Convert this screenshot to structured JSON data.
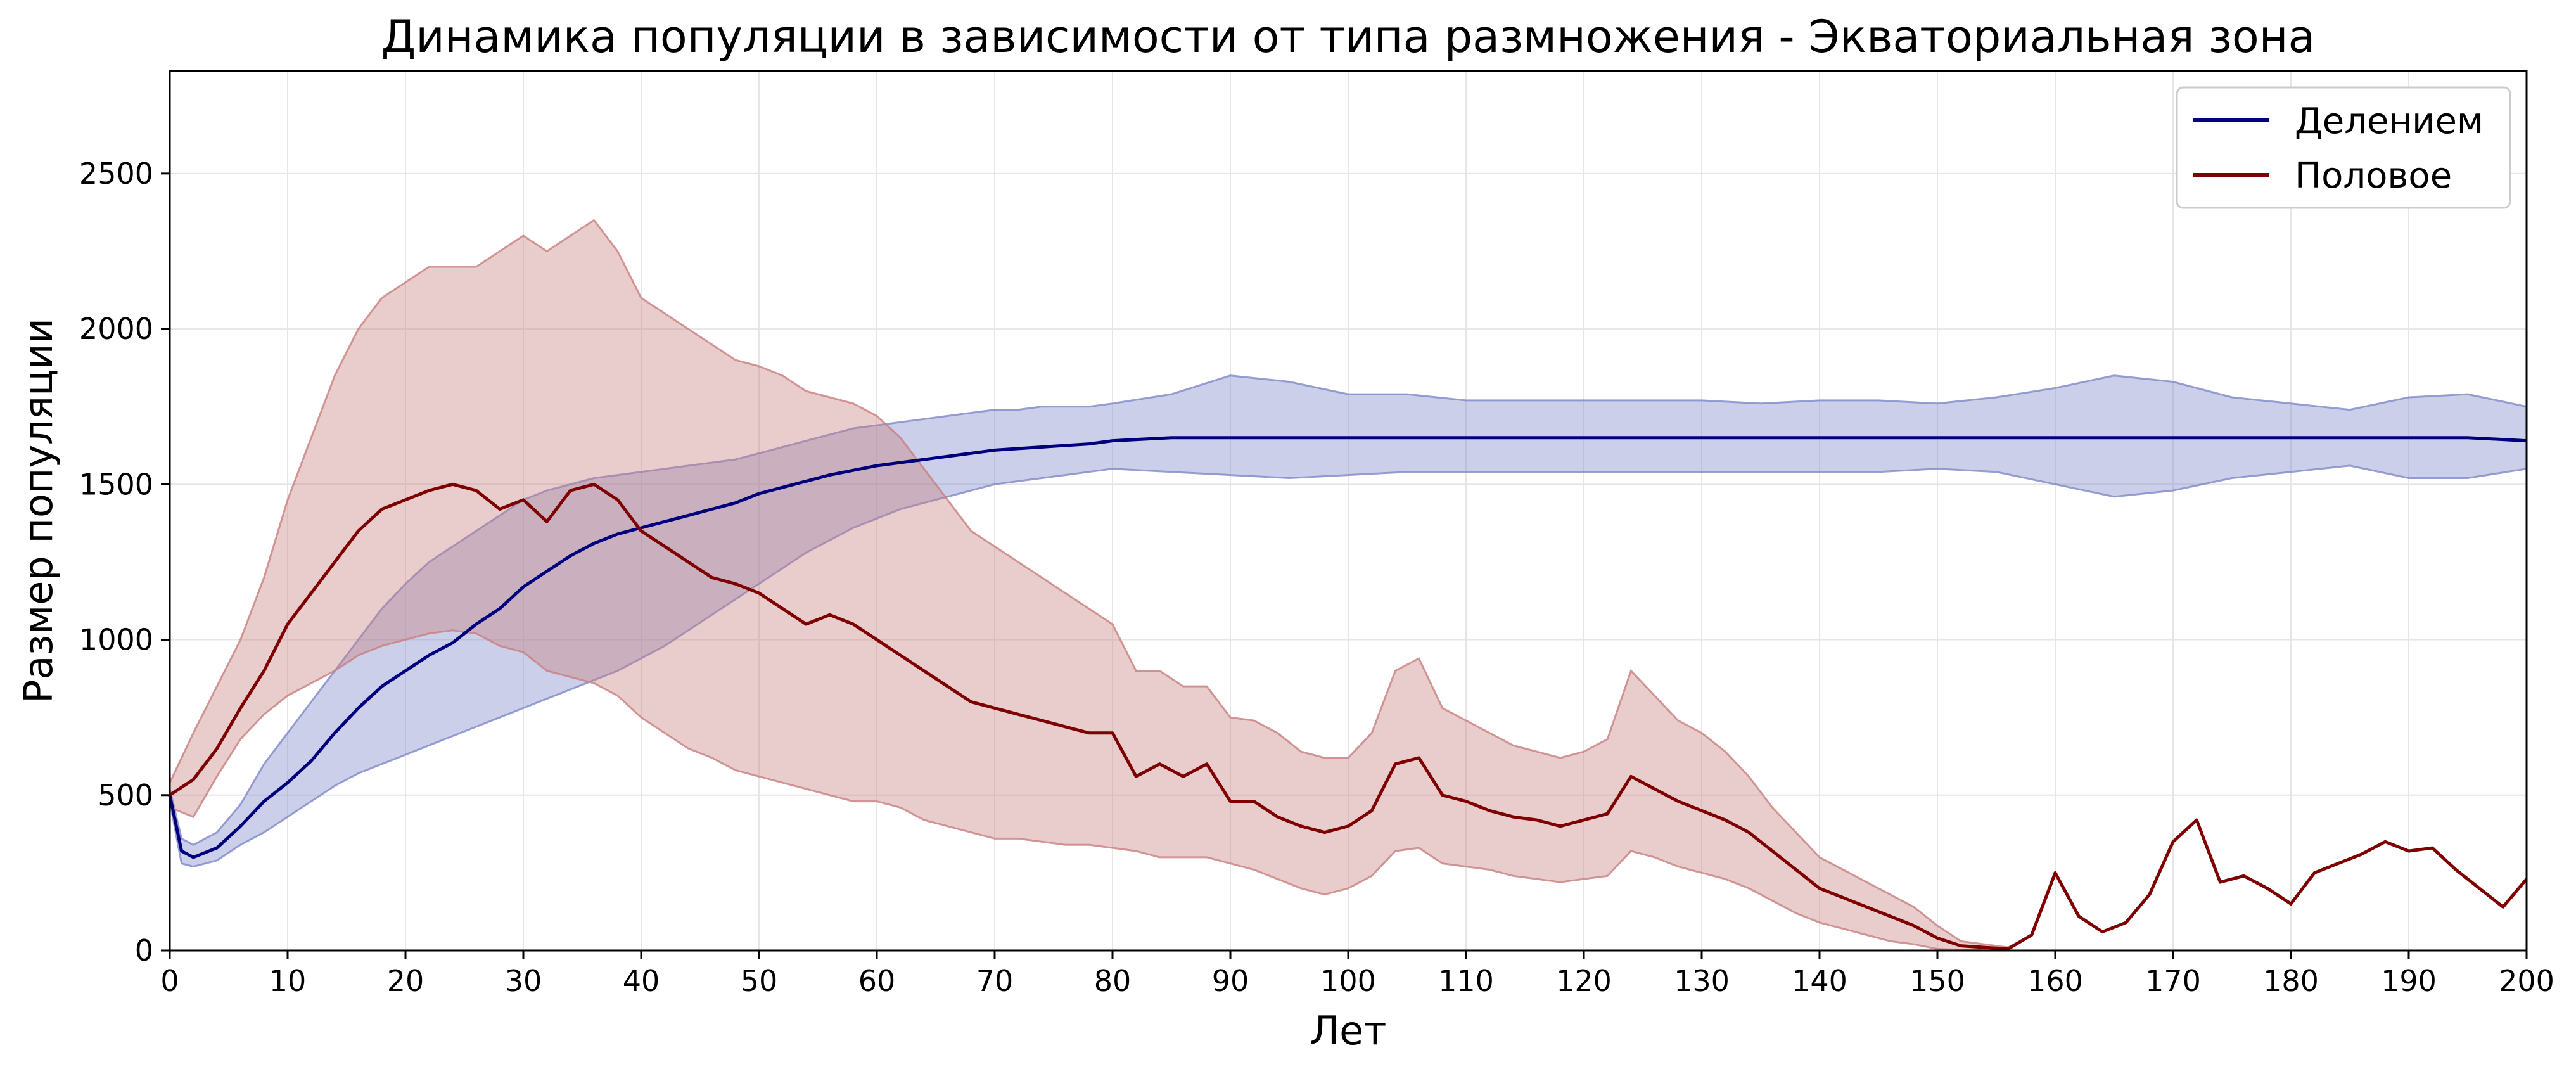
{
  "chart_data": {
    "type": "line",
    "title": "Динамика популяции в зависимости от типа размножения - Экваториальная зона",
    "xlabel": "Лет",
    "ylabel": "Размер популяции",
    "xlim": [
      0,
      200
    ],
    "ylim": [
      0,
      2830
    ],
    "x_ticks": [
      "0",
      "10",
      "20",
      "30",
      "40",
      "50",
      "60",
      "70",
      "80",
      "90",
      "100",
      "110",
      "120",
      "130",
      "140",
      "150",
      "160",
      "170",
      "180",
      "190",
      "200"
    ],
    "y_ticks": [
      "0",
      "500",
      "1000",
      "1500",
      "2000",
      "2500"
    ],
    "grid": true,
    "legend_position": "top-right",
    "bands": "shaded ranges around each series",
    "series": [
      {
        "name": "Делением",
        "color": "#00007f",
        "band_color": "#8088c8",
        "x": [
          0,
          1,
          2,
          4,
          6,
          8,
          10,
          12,
          14,
          16,
          18,
          20,
          22,
          24,
          26,
          28,
          30,
          32,
          34,
          36,
          38,
          40,
          42,
          44,
          46,
          48,
          50,
          52,
          54,
          56,
          58,
          60,
          62,
          64,
          66,
          68,
          70,
          72,
          74,
          76,
          78,
          80,
          85,
          90,
          95,
          100,
          105,
          110,
          115,
          120,
          125,
          130,
          135,
          140,
          145,
          150,
          155,
          160,
          165,
          170,
          175,
          180,
          185,
          190,
          195,
          200
        ],
        "values": [
          500,
          320,
          300,
          330,
          400,
          480,
          540,
          610,
          700,
          780,
          850,
          900,
          950,
          990,
          1050,
          1100,
          1170,
          1220,
          1270,
          1310,
          1340,
          1360,
          1380,
          1400,
          1420,
          1440,
          1470,
          1490,
          1510,
          1530,
          1545,
          1560,
          1570,
          1580,
          1590,
          1600,
          1610,
          1615,
          1620,
          1625,
          1630,
          1640,
          1650,
          1650,
          1650,
          1650,
          1650,
          1650,
          1650,
          1650,
          1650,
          1650,
          1650,
          1650,
          1650,
          1650,
          1650,
          1650,
          1650,
          1650,
          1650,
          1650,
          1650,
          1650,
          1650,
          1640
        ],
        "band_low": [
          480,
          280,
          270,
          290,
          340,
          380,
          430,
          480,
          530,
          570,
          600,
          630,
          660,
          690,
          720,
          750,
          780,
          810,
          840,
          870,
          900,
          940,
          980,
          1030,
          1080,
          1130,
          1180,
          1230,
          1280,
          1320,
          1360,
          1390,
          1420,
          1440,
          1460,
          1480,
          1500,
          1510,
          1520,
          1530,
          1540,
          1550,
          1540,
          1530,
          1520,
          1530,
          1540,
          1540,
          1540,
          1540,
          1540,
          1540,
          1540,
          1540,
          1540,
          1550,
          1540,
          1500,
          1460,
          1480,
          1520,
          1540,
          1560,
          1520,
          1520,
          1550
        ],
        "band_high": [
          520,
          360,
          340,
          380,
          470,
          600,
          700,
          800,
          900,
          1000,
          1100,
          1180,
          1250,
          1300,
          1350,
          1400,
          1450,
          1480,
          1500,
          1520,
          1530,
          1540,
          1550,
          1560,
          1570,
          1580,
          1600,
          1620,
          1640,
          1660,
          1680,
          1690,
          1700,
          1710,
          1720,
          1730,
          1740,
          1740,
          1750,
          1750,
          1750,
          1760,
          1790,
          1850,
          1830,
          1790,
          1790,
          1770,
          1770,
          1770,
          1770,
          1770,
          1760,
          1770,
          1770,
          1760,
          1780,
          1810,
          1850,
          1830,
          1780,
          1760,
          1740,
          1780,
          1790,
          1750
        ]
      },
      {
        "name": "Половое",
        "color": "#7f0000",
        "band_color": "#c88080",
        "x": [
          0,
          2,
          4,
          6,
          8,
          10,
          12,
          14,
          16,
          18,
          20,
          22,
          24,
          26,
          28,
          30,
          32,
          34,
          36,
          38,
          40,
          42,
          44,
          46,
          48,
          50,
          52,
          54,
          56,
          58,
          60,
          62,
          64,
          66,
          68,
          70,
          72,
          74,
          76,
          78,
          80,
          82,
          84,
          86,
          88,
          90,
          92,
          94,
          96,
          98,
          100,
          102,
          104,
          106,
          108,
          110,
          112,
          114,
          116,
          118,
          120,
          122,
          124,
          126,
          128,
          130,
          132,
          134,
          136,
          138,
          140,
          142,
          144,
          146,
          148,
          150,
          152,
          154,
          156,
          158,
          160,
          162,
          164,
          166,
          168,
          170,
          172,
          174,
          176,
          178,
          180,
          182,
          184,
          186,
          188,
          190,
          192,
          194,
          196,
          198,
          200
        ],
        "values": [
          500,
          550,
          650,
          780,
          900,
          1050,
          1150,
          1250,
          1350,
          1420,
          1450,
          1480,
          1500,
          1480,
          1420,
          1450,
          1380,
          1480,
          1500,
          1450,
          1350,
          1300,
          1250,
          1200,
          1180,
          1150,
          1100,
          1050,
          1080,
          1050,
          1000,
          950,
          900,
          850,
          800,
          780,
          760,
          740,
          720,
          700,
          700,
          560,
          600,
          560,
          600,
          480,
          480,
          430,
          400,
          380,
          400,
          450,
          600,
          620,
          500,
          480,
          450,
          430,
          420,
          400,
          420,
          440,
          560,
          520,
          480,
          450,
          420,
          380,
          320,
          260,
          200,
          170,
          140,
          110,
          80,
          40,
          15,
          10,
          5,
          50,
          250,
          110,
          60,
          90,
          180,
          350,
          420,
          220,
          240,
          200,
          150,
          250,
          280,
          310,
          350,
          320,
          330,
          260,
          200,
          140,
          230
        ],
        "band_low": [
          460,
          430,
          560,
          680,
          760,
          820,
          860,
          900,
          950,
          980,
          1000,
          1020,
          1030,
          1020,
          980,
          960,
          900,
          880,
          860,
          820,
          750,
          700,
          650,
          620,
          580,
          560,
          540,
          520,
          500,
          480,
          480,
          460,
          420,
          400,
          380,
          360,
          360,
          350,
          340,
          340,
          330,
          320,
          300,
          300,
          300,
          280,
          260,
          230,
          200,
          180,
          200,
          240,
          320,
          330,
          280,
          270,
          260,
          240,
          230,
          220,
          230,
          240,
          320,
          300,
          270,
          250,
          230,
          200,
          160,
          120,
          90,
          70,
          50,
          30,
          20,
          5,
          2,
          2,
          2,
          50,
          250,
          110,
          60,
          90,
          180,
          350,
          420,
          220,
          240,
          200,
          150,
          250,
          280,
          310,
          350,
          320,
          330,
          260,
          200,
          140,
          230
        ],
        "band_high": [
          540,
          700,
          850,
          1000,
          1200,
          1450,
          1650,
          1850,
          2000,
          2100,
          2150,
          2200,
          2200,
          2200,
          2250,
          2300,
          2250,
          2300,
          2350,
          2250,
          2100,
          2050,
          2000,
          1950,
          1900,
          1880,
          1850,
          1800,
          1780,
          1760,
          1720,
          1650,
          1550,
          1450,
          1350,
          1300,
          1250,
          1200,
          1150,
          1100,
          1050,
          900,
          900,
          850,
          850,
          750,
          740,
          700,
          640,
          620,
          620,
          700,
          900,
          940,
          780,
          740,
          700,
          660,
          640,
          620,
          640,
          680,
          900,
          820,
          740,
          700,
          640,
          560,
          460,
          380,
          300,
          260,
          220,
          180,
          140,
          80,
          30,
          20,
          10,
          50,
          250,
          110,
          60,
          90,
          180,
          350,
          420,
          220,
          240,
          200,
          150,
          250,
          280,
          310,
          350,
          320,
          330,
          260,
          200,
          140,
          230
        ]
      }
    ]
  }
}
